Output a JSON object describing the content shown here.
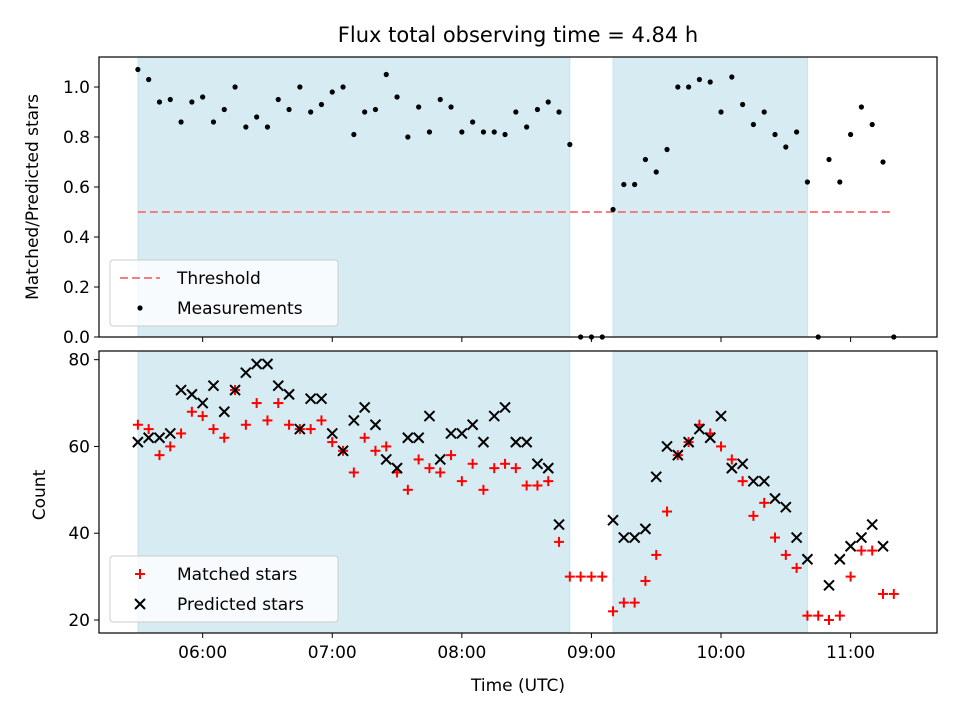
{
  "chart_data": [
    {
      "type": "scatter",
      "title": "Flux total observing time = 4.84 h",
      "xlabel": "",
      "ylabel": "Matched/Predicted stars",
      "xlim": [
        "05:12",
        "11:40"
      ],
      "ylim": [
        0.0,
        1.12
      ],
      "y_ticks": [
        "0.0",
        "0.2",
        "0.4",
        "0.6",
        "0.8",
        "1.0"
      ],
      "grid": false,
      "legend_position": "lower-left",
      "observing_windows": [
        {
          "start": "05:30",
          "end": "08:50"
        },
        {
          "start": "09:10",
          "end": "10:40"
        }
      ],
      "threshold": {
        "name": "Threshold",
        "color": "#f08080",
        "value": 0.5,
        "x_start": "05:30",
        "x_end": "11:20"
      },
      "series": [
        {
          "name": "Measurements",
          "color": "#000000",
          "x": [
            "05:30",
            "05:35",
            "05:40",
            "05:45",
            "05:50",
            "05:55",
            "06:00",
            "06:05",
            "06:10",
            "06:15",
            "06:20",
            "06:25",
            "06:30",
            "06:35",
            "06:40",
            "06:45",
            "06:50",
            "06:55",
            "07:00",
            "07:05",
            "07:10",
            "07:15",
            "07:20",
            "07:25",
            "07:30",
            "07:35",
            "07:40",
            "07:45",
            "07:50",
            "07:55",
            "08:00",
            "08:05",
            "08:10",
            "08:15",
            "08:20",
            "08:25",
            "08:30",
            "08:35",
            "08:40",
            "08:45",
            "08:50",
            "08:55",
            "09:00",
            "09:05",
            "09:10",
            "09:15",
            "09:20",
            "09:25",
            "09:30",
            "09:35",
            "09:40",
            "09:45",
            "09:50",
            "09:55",
            "10:00",
            "10:05",
            "10:10",
            "10:15",
            "10:20",
            "10:25",
            "10:30",
            "10:35",
            "10:40",
            "10:45",
            "10:50",
            "10:55",
            "11:00",
            "11:05",
            "11:10",
            "11:15"
          ],
          "y": [
            1.07,
            1.03,
            0.94,
            0.95,
            0.86,
            0.94,
            0.96,
            0.86,
            0.91,
            1.0,
            0.84,
            0.88,
            0.84,
            0.95,
            0.91,
            1.0,
            0.9,
            0.93,
            0.98,
            1.0,
            0.81,
            0.9,
            0.91,
            1.05,
            0.96,
            0.8,
            0.92,
            0.82,
            0.95,
            0.92,
            0.82,
            0.86,
            0.82,
            0.82,
            0.81,
            0.9,
            0.84,
            0.91,
            0.94,
            0.9,
            0.77,
            0.0,
            0.0,
            0.0,
            0.51,
            0.61,
            0.61,
            0.71,
            0.66,
            0.75,
            1.0,
            1.0,
            1.03,
            1.02,
            0.9,
            1.04,
            0.93,
            0.85,
            0.9,
            0.81,
            0.76,
            0.82,
            0.62,
            0.0,
            0.71,
            0.62,
            0.81,
            0.92,
            0.85,
            0.7
          ],
          "x_extra": [
            "11:20"
          ],
          "y_extra": [
            0.0
          ]
        }
      ]
    },
    {
      "type": "scatter",
      "title": "",
      "xlabel": "Time (UTC)",
      "ylabel": "Count",
      "xlim": [
        "05:12",
        "11:40"
      ],
      "ylim": [
        17,
        82
      ],
      "y_ticks": [
        "20",
        "40",
        "60",
        "80"
      ],
      "x_ticks": [
        "06:00",
        "07:00",
        "08:00",
        "09:00",
        "10:00",
        "11:00"
      ],
      "grid": false,
      "legend_position": "lower-left",
      "observing_windows": [
        {
          "start": "05:30",
          "end": "08:50"
        },
        {
          "start": "09:10",
          "end": "10:40"
        }
      ],
      "series": [
        {
          "name": "Matched stars",
          "color": "#ff0000",
          "marker": "plus",
          "x": [
            "05:30",
            "05:35",
            "05:40",
            "05:45",
            "05:50",
            "05:55",
            "06:00",
            "06:05",
            "06:10",
            "06:15",
            "06:20",
            "06:25",
            "06:30",
            "06:35",
            "06:40",
            "06:45",
            "06:50",
            "06:55",
            "07:00",
            "07:05",
            "07:10",
            "07:15",
            "07:20",
            "07:25",
            "07:30",
            "07:35",
            "07:40",
            "07:45",
            "07:50",
            "07:55",
            "08:00",
            "08:05",
            "08:10",
            "08:15",
            "08:20",
            "08:25",
            "08:30",
            "08:35",
            "08:40",
            "08:45",
            "08:50",
            "08:55",
            "09:00",
            "09:05",
            "09:10",
            "09:15",
            "09:20",
            "09:25",
            "09:30",
            "09:35",
            "09:40",
            "09:45",
            "09:50",
            "09:55",
            "10:00",
            "10:05",
            "10:10",
            "10:15",
            "10:20",
            "10:25",
            "10:30",
            "10:35",
            "10:40",
            "10:45",
            "10:50",
            "10:55",
            "11:00",
            "11:05",
            "11:10",
            "11:15",
            "11:20"
          ],
          "y": [
            65,
            64,
            58,
            60,
            63,
            68,
            67,
            64,
            62,
            73,
            65,
            70,
            66,
            70,
            65,
            64,
            64,
            66,
            61,
            59,
            54,
            62,
            59,
            60,
            54,
            50,
            57,
            55,
            54,
            58,
            52,
            56,
            50,
            55,
            56,
            55,
            51,
            51,
            52,
            38,
            30,
            30,
            30,
            30,
            22,
            24,
            24,
            29,
            35,
            45,
            58,
            61,
            65,
            63,
            60,
            57,
            52,
            44,
            47,
            39,
            35,
            32,
            21,
            21,
            20,
            21,
            30,
            36,
            36,
            26,
            26
          ]
        },
        {
          "name": "Predicted stars",
          "color": "#000000",
          "marker": "x",
          "x": [
            "05:30",
            "05:35",
            "05:40",
            "05:45",
            "05:50",
            "05:55",
            "06:00",
            "06:05",
            "06:10",
            "06:15",
            "06:20",
            "06:25",
            "06:30",
            "06:35",
            "06:40",
            "06:45",
            "06:50",
            "06:55",
            "07:00",
            "07:05",
            "07:10",
            "07:15",
            "07:20",
            "07:25",
            "07:30",
            "07:35",
            "07:40",
            "07:45",
            "07:50",
            "07:55",
            "08:00",
            "08:05",
            "08:10",
            "08:15",
            "08:20",
            "08:25",
            "08:30",
            "08:35",
            "08:40",
            "08:45",
            "09:10",
            "09:15",
            "09:20",
            "09:25",
            "09:30",
            "09:35",
            "09:40",
            "09:45",
            "09:50",
            "09:55",
            "10:00",
            "10:05",
            "10:10",
            "10:15",
            "10:20",
            "10:25",
            "10:30",
            "10:35",
            "10:40",
            "10:50",
            "10:55",
            "11:00",
            "11:05",
            "11:10",
            "11:15"
          ],
          "y": [
            61,
            62,
            62,
            63,
            73,
            72,
            70,
            74,
            68,
            73,
            77,
            79,
            79,
            74,
            72,
            64,
            71,
            71,
            63,
            59,
            66,
            69,
            65,
            57,
            55,
            62,
            62,
            67,
            57,
            63,
            63,
            65,
            61,
            67,
            69,
            61,
            61,
            56,
            55,
            42,
            43,
            39,
            39,
            41,
            53,
            60,
            58,
            61,
            64,
            62,
            67,
            55,
            56,
            52,
            52,
            48,
            46,
            39,
            34,
            28,
            34,
            37,
            39,
            42,
            37
          ]
        }
      ]
    }
  ]
}
